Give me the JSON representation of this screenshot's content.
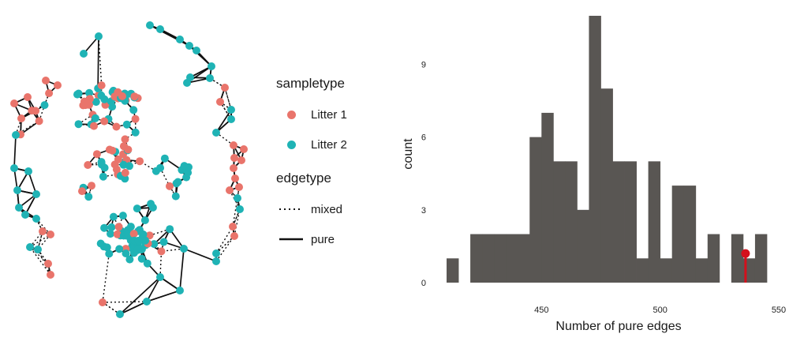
{
  "colors": {
    "litter1": "#E9746B",
    "litter2": "#1FB3B5",
    "bar": "#595653",
    "highlight": "#D4101C",
    "edge": "#111111"
  },
  "legend": {
    "sampletype_title": "sampletype",
    "sampletype_items": [
      "Litter 1",
      "Litter 2"
    ],
    "edgetype_title": "edgetype",
    "edgetype_items": [
      "mixed",
      "pure"
    ]
  },
  "chart_data": [
    {
      "type": "network",
      "node_groups": [
        "Litter 1",
        "Litter 2"
      ],
      "edge_types": [
        "mixed",
        "pure"
      ]
    },
    {
      "type": "bar",
      "title": "",
      "xlabel": "Number of pure edges",
      "ylabel": "count",
      "bin_width": 5,
      "bin_starts": [
        410,
        415,
        420,
        425,
        430,
        435,
        440,
        445,
        450,
        455,
        460,
        465,
        470,
        475,
        480,
        485,
        490,
        495,
        500,
        505,
        510,
        515,
        520,
        525,
        530,
        535,
        540
      ],
      "counts": [
        1,
        0,
        2,
        2,
        2,
        2,
        2,
        6,
        7,
        5,
        5,
        3,
        11,
        8,
        5,
        5,
        1,
        5,
        1,
        4,
        4,
        1,
        2,
        0,
        2,
        1,
        2
      ],
      "xlim": [
        407,
        550
      ],
      "ylim": [
        0,
        11
      ],
      "x_ticks": [
        450,
        500,
        550
      ],
      "y_ticks": [
        0,
        3,
        6,
        9
      ],
      "observed_value": 536,
      "observed_marker_height": 1.2
    }
  ]
}
